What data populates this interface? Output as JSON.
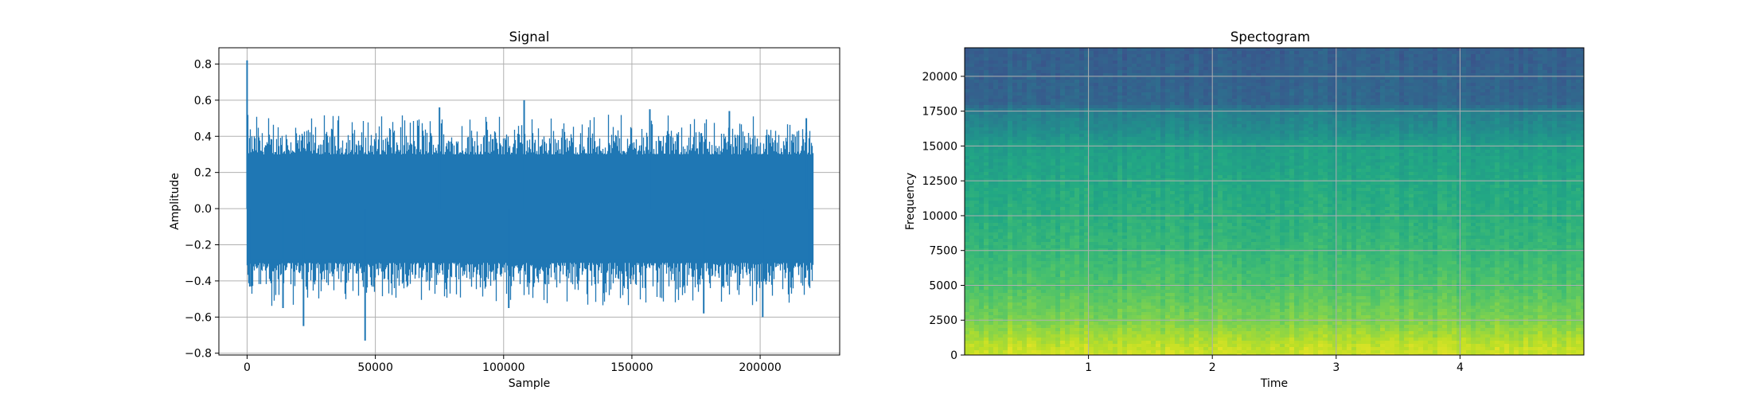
{
  "chart_data": [
    {
      "type": "line",
      "title": "Signal",
      "xlabel": "Sample",
      "ylabel": "Amplitude",
      "xlim": [
        -11000,
        231000
      ],
      "ylim": [
        -0.81,
        0.89
      ],
      "xticks": [
        0,
        50000,
        100000,
        150000,
        200000
      ],
      "xtick_labels": [
        "0",
        "50000",
        "100000",
        "150000",
        "200000"
      ],
      "yticks": [
        0.8,
        0.6,
        0.4,
        0.2,
        0.0,
        -0.2,
        -0.4,
        -0.6,
        -0.8
      ],
      "ytick_labels": [
        "0.8",
        "0.6",
        "0.4",
        "0.2",
        "0.0",
        "−0.2",
        "−0.4",
        "−0.6",
        "−0.8"
      ],
      "grid": true,
      "series": [
        {
          "color": "#1f77b4",
          "x_range": [
            0,
            220500
          ],
          "core_band": [
            -0.3,
            0.3
          ],
          "start_spike": 0.82,
          "peaks": [
            {
              "x": 0,
              "y": 0.82
            },
            {
              "x": 1500,
              "y": -0.43
            },
            {
              "x": 14000,
              "y": -0.55
            },
            {
              "x": 22000,
              "y": -0.65
            },
            {
              "x": 46000,
              "y": -0.73
            },
            {
              "x": 75000,
              "y": 0.56
            },
            {
              "x": 102000,
              "y": -0.55
            },
            {
              "x": 108000,
              "y": 0.6
            },
            {
              "x": 157000,
              "y": 0.55
            },
            {
              "x": 178000,
              "y": -0.58
            },
            {
              "x": 188000,
              "y": 0.54
            },
            {
              "x": 201000,
              "y": -0.6
            },
            {
              "x": 218000,
              "y": 0.5
            },
            {
              "x": 219000,
              "y": -0.42
            }
          ]
        }
      ]
    },
    {
      "type": "heatmap",
      "title": "Spectogram",
      "xlabel": "Time",
      "ylabel": "Frequency",
      "xlim": [
        0,
        5
      ],
      "ylim": [
        0,
        22050
      ],
      "xticks": [
        1,
        2,
        3,
        4
      ],
      "xtick_labels": [
        "1",
        "2",
        "3",
        "4"
      ],
      "yticks": [
        0,
        2500,
        5000,
        7500,
        10000,
        12500,
        15000,
        17500,
        20000
      ],
      "ytick_labels": [
        "0",
        "2500",
        "5000",
        "7500",
        "10000",
        "12500",
        "15000",
        "17500",
        "20000"
      ],
      "grid": true,
      "colormap": "viridis",
      "energy_profile": [
        {
          "frequency": 0,
          "level": 0.93
        },
        {
          "frequency": 800,
          "level": 0.9
        },
        {
          "frequency": 2500,
          "level": 0.8
        },
        {
          "frequency": 5000,
          "level": 0.72
        },
        {
          "frequency": 7500,
          "level": 0.67
        },
        {
          "frequency": 10000,
          "level": 0.63
        },
        {
          "frequency": 12500,
          "level": 0.6
        },
        {
          "frequency": 15000,
          "level": 0.56
        },
        {
          "frequency": 16000,
          "level": 0.49
        },
        {
          "frequency": 17500,
          "level": 0.43
        },
        {
          "frequency": 18000,
          "level": 0.33
        },
        {
          "frequency": 22050,
          "level": 0.3
        }
      ]
    }
  ]
}
